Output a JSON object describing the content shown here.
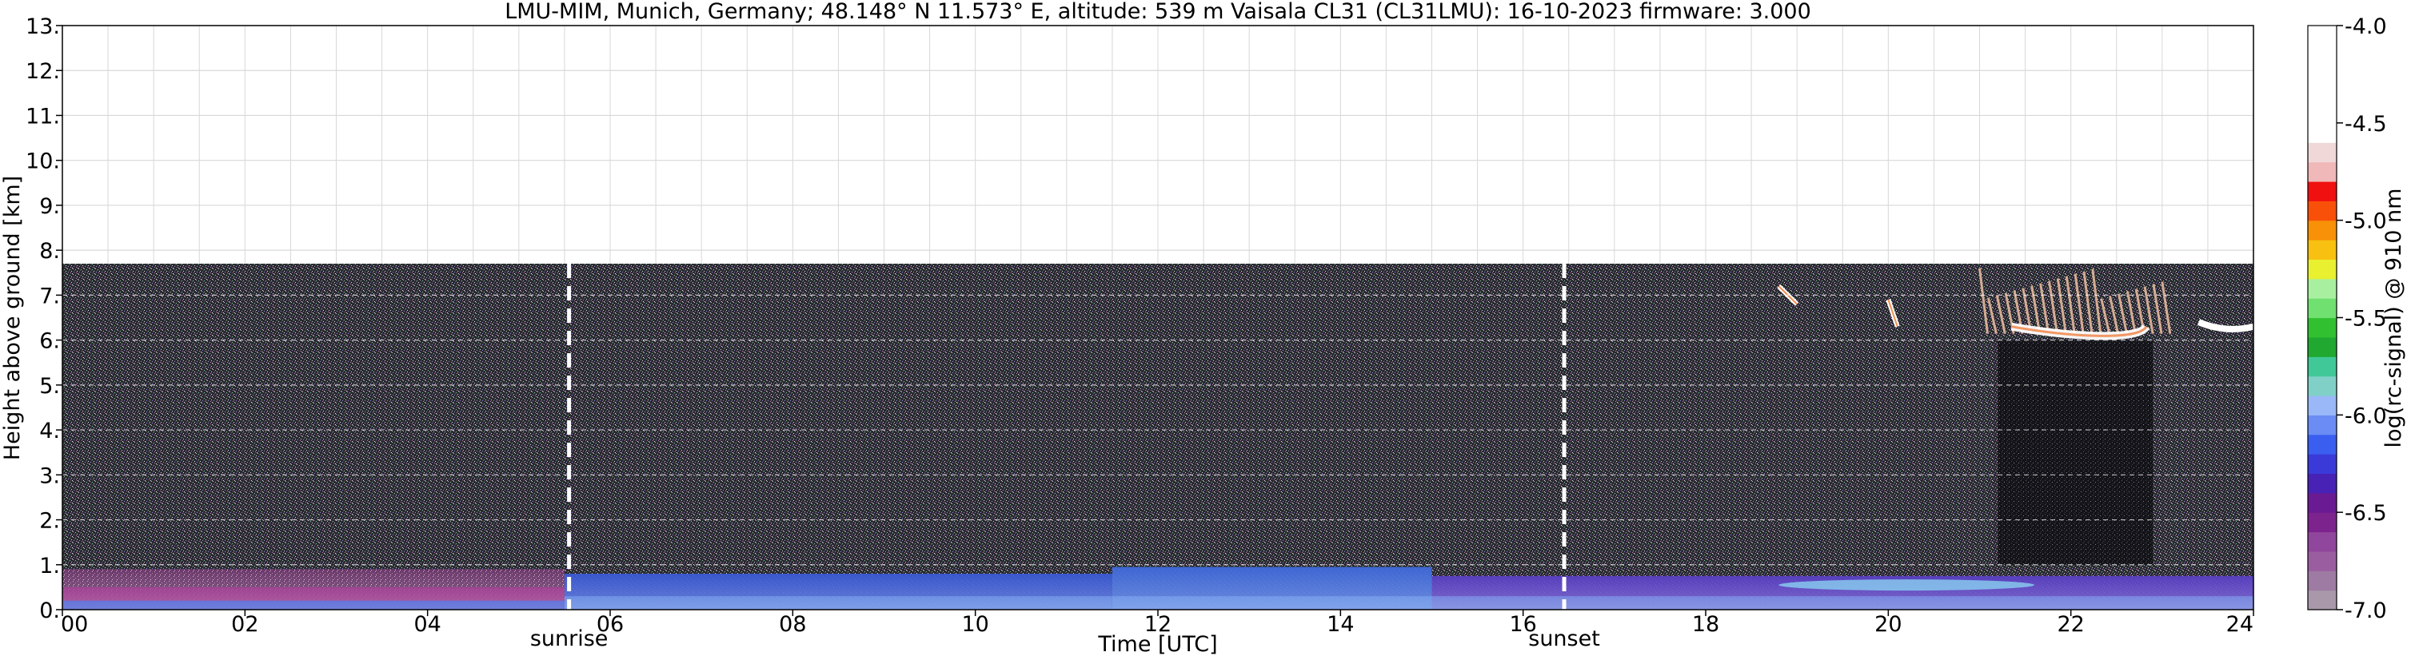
{
  "chart_data": {
    "type": "heatmap",
    "title": "LMU-MIM, Munich, Germany; 48.148° N 11.573° E, altitude: 539 m    Vaisala CL31 (CL31LMU): 16-10-2023    firmware: 3.000",
    "xlabel": "Time [UTC]",
    "ylabel": "Height above ground [km]",
    "xlim": [
      0,
      24
    ],
    "ylim": [
      0,
      13
    ],
    "x_ticks": [
      0,
      2,
      4,
      6,
      8,
      10,
      12,
      14,
      16,
      18,
      20,
      22,
      24
    ],
    "x_tick_labels": [
      "00",
      "02",
      "04",
      "06",
      "08",
      "10",
      "12",
      "14",
      "16",
      "18",
      "20",
      "22",
      "24"
    ],
    "y_ticks": [
      0,
      1,
      2,
      3,
      4,
      5,
      6,
      7,
      8,
      9,
      10,
      11,
      12,
      13
    ],
    "y_tick_labels": [
      "0.",
      "1.",
      "2.",
      "3.",
      "4.",
      "5.",
      "6.",
      "7.",
      "8.",
      "9.",
      "10.",
      "11.",
      "12.",
      "13."
    ],
    "grid": true,
    "data_top_km": 7.7,
    "markers": [
      {
        "label": "sunrise",
        "x": 5.55
      },
      {
        "label": "sunset",
        "x": 16.45
      }
    ],
    "boundary_layer": [
      {
        "x0": 0,
        "x1": 5.5,
        "top_km": 0.9,
        "color": "#9a2a88"
      },
      {
        "x0": 5.5,
        "x1": 11.5,
        "top_km": 0.8,
        "color": "#3a5ad8"
      },
      {
        "x0": 11.5,
        "x1": 15,
        "top_km": 0.95,
        "color": "#3f6ae0"
      },
      {
        "x0": 15,
        "x1": 24,
        "top_km": 0.75,
        "color": "#5a3fc8"
      }
    ],
    "cloud_features": [
      {
        "x0": 18.8,
        "x1": 19.0,
        "y0": 6.8,
        "y1": 7.2
      },
      {
        "x0": 20.0,
        "x1": 20.1,
        "y0": 6.3,
        "y1": 6.9
      },
      {
        "x0": 21.0,
        "x1": 23.0,
        "y0": 6.0,
        "y1": 7.6
      },
      {
        "x0": 23.4,
        "x1": 24.0,
        "y0": 6.2,
        "y1": 6.4
      }
    ],
    "colorbar": {
      "label": "log(rc-signal) @ 910 nm",
      "min": -7.0,
      "max": -4.0,
      "ticks": [
        -7.0,
        -6.5,
        -6.0,
        -5.5,
        -5.0,
        -4.5,
        -4.0
      ],
      "tick_labels": [
        "-7.0",
        "-6.5",
        "-6.0",
        "-5.5",
        "-5.0",
        "-4.5",
        "-4.0"
      ],
      "colors": [
        "#a898aa",
        "#9e7ba2",
        "#9a5ea0",
        "#90469c",
        "#7d238e",
        "#6a1a92",
        "#4822b4",
        "#3a3ad8",
        "#3a5ef0",
        "#6a8cf4",
        "#9ab8f8",
        "#80d0c8",
        "#40c898",
        "#20a830",
        "#30c030",
        "#70e070",
        "#a8f0a0",
        "#e8f030",
        "#f8c010",
        "#f89008",
        "#f85008",
        "#f01010",
        "#f0b8b8",
        "#f0d8d8",
        "#ffffff",
        "#ffffff",
        "#ffffff",
        "#ffffff",
        "#ffffff",
        "#ffffff"
      ]
    }
  }
}
